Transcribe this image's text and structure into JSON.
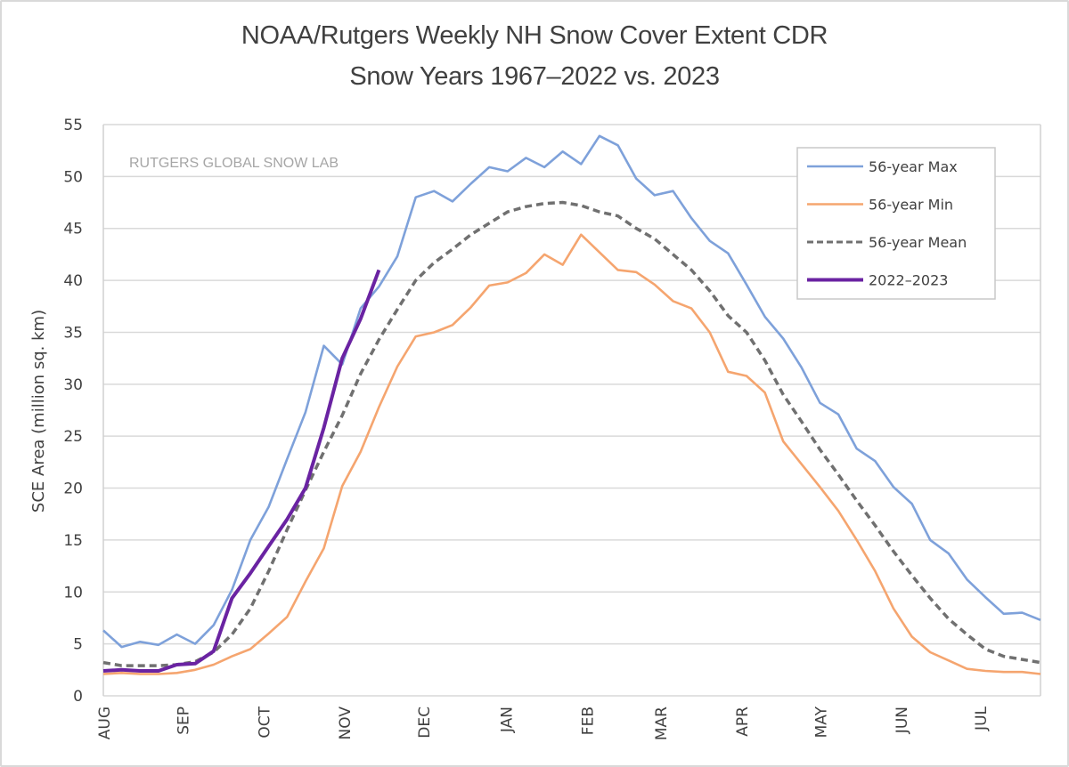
{
  "chart_data": {
    "type": "line",
    "title": "NOAA/Rutgers Weekly NH Snow Cover Extent CDR",
    "subtitle": "Snow Years 1967–2022 vs. 2023",
    "xlabel": "",
    "ylabel": "SCE Area (million sq. km)",
    "watermark": "RUTGERS GLOBAL SNOW LAB",
    "ylim": [
      0,
      55
    ],
    "yticks": [
      0,
      5,
      10,
      15,
      20,
      25,
      30,
      35,
      40,
      45,
      50,
      55
    ],
    "ytick_labels": [
      "0",
      "5",
      "10",
      "15",
      "20",
      "25",
      "30",
      "35",
      "40",
      "45",
      "50",
      "55"
    ],
    "grid": "horizontal",
    "legend_position": "top-right",
    "x_unit": "week of snow year (starting first week of August)",
    "xlim": [
      0,
      51
    ],
    "xticks": [
      {
        "label": "AUG",
        "week": 0
      },
      {
        "label": "SEP",
        "week": 4.3
      },
      {
        "label": "OCT",
        "week": 8.7
      },
      {
        "label": "NOV",
        "week": 13.1
      },
      {
        "label": "DEC",
        "week": 17.4
      },
      {
        "label": "JAN",
        "week": 21.9
      },
      {
        "label": "FEB",
        "week": 26.3
      },
      {
        "label": "MAR",
        "week": 30.3
      },
      {
        "label": "APR",
        "week": 34.7
      },
      {
        "label": "MAY",
        "week": 39.0
      },
      {
        "label": "JUN",
        "week": 43.4
      },
      {
        "label": "JUL",
        "week": 47.7
      }
    ],
    "series": [
      {
        "name": "56-year Max",
        "color": "#7ea1da",
        "style": "solid",
        "values": [
          6.3,
          4.7,
          5.2,
          4.9,
          5.9,
          5.0,
          6.8,
          10.2,
          15.0,
          18.2,
          22.8,
          27.3,
          33.7,
          31.9,
          37.3,
          39.4,
          42.3,
          48.0,
          48.6,
          47.6,
          49.3,
          50.9,
          50.5,
          51.8,
          50.9,
          52.4,
          51.2,
          53.9,
          53.0,
          49.8,
          48.2,
          48.6,
          46.0,
          43.8,
          42.6,
          39.6,
          36.5,
          34.4,
          31.6,
          28.2,
          27.1,
          23.8,
          22.6,
          20.1,
          18.5,
          15.0,
          13.7,
          11.2,
          9.5,
          7.9,
          8.0,
          7.3
        ]
      },
      {
        "name": "56-year Min",
        "color": "#f5a56f",
        "style": "solid",
        "values": [
          2.1,
          2.2,
          2.1,
          2.1,
          2.2,
          2.5,
          3.0,
          3.8,
          4.5,
          6.0,
          7.6,
          11.0,
          14.2,
          20.2,
          23.5,
          27.8,
          31.7,
          34.6,
          35.0,
          35.7,
          37.4,
          39.5,
          39.8,
          40.7,
          42.5,
          41.5,
          44.4,
          42.7,
          41.0,
          40.8,
          39.6,
          38.0,
          37.3,
          35.0,
          31.2,
          30.8,
          29.2,
          24.5,
          22.3,
          20.1,
          17.8,
          15.0,
          12.0,
          8.4,
          5.7,
          4.2,
          3.4,
          2.6,
          2.4,
          2.3,
          2.3,
          2.1
        ]
      },
      {
        "name": "56-year Mean",
        "color": "#707070",
        "style": "dashed",
        "values": [
          3.2,
          2.9,
          2.9,
          2.9,
          3.0,
          3.3,
          4.2,
          5.9,
          8.4,
          12.0,
          16.0,
          19.8,
          23.5,
          27.0,
          31.0,
          34.3,
          37.2,
          40.0,
          41.7,
          43.0,
          44.4,
          45.5,
          46.6,
          47.1,
          47.4,
          47.5,
          47.2,
          46.6,
          46.2,
          45.0,
          44.0,
          42.5,
          41.0,
          39.0,
          36.6,
          35.0,
          32.3,
          29.0,
          26.4,
          23.7,
          21.3,
          18.8,
          16.4,
          13.9,
          11.6,
          9.4,
          7.4,
          5.9,
          4.5,
          3.8,
          3.5,
          3.2
        ]
      },
      {
        "name": "2022–2023",
        "color": "#6a23a2",
        "style": "solid-thick",
        "values": [
          2.4,
          2.5,
          2.4,
          2.4,
          3.0,
          3.1,
          4.3,
          9.4,
          11.8,
          14.4,
          17.0,
          20.0,
          25.8,
          32.5,
          36.3,
          41.0
        ]
      }
    ],
    "legend": [
      {
        "label": "56-year Max",
        "color": "#7ea1da",
        "style": "solid"
      },
      {
        "label": "56-year Min",
        "color": "#f5a56f",
        "style": "solid"
      },
      {
        "label": "56-year Mean",
        "color": "#707070",
        "style": "dashed"
      },
      {
        "label": "2022–2023",
        "color": "#6a23a2",
        "style": "solid-thick"
      }
    ]
  }
}
